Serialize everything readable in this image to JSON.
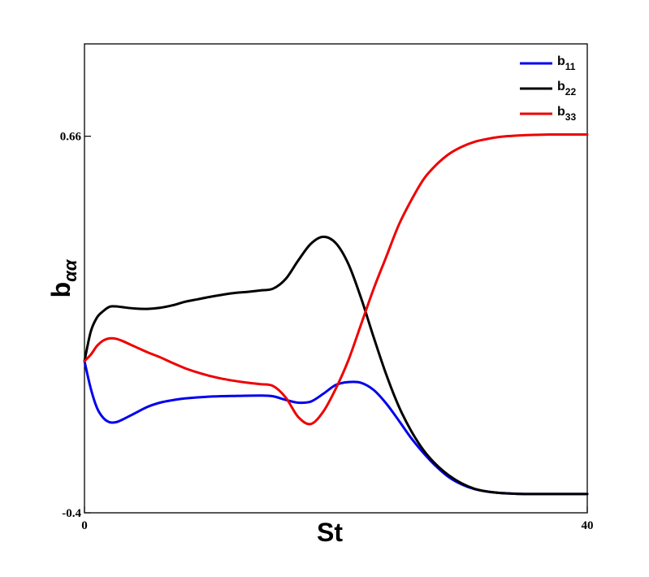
{
  "chart_data": {
    "type": "line",
    "title": "",
    "xlabel": "St",
    "ylabel_main": "b",
    "ylabel_sub": "αα",
    "xlim": [
      0,
      40
    ],
    "ylim": [
      -0.4,
      0.92
    ],
    "x_ticks": [
      {
        "value": 0,
        "label": "0"
      },
      {
        "value": 40,
        "label": "40"
      }
    ],
    "y_ticks": [
      {
        "value": 0.66,
        "label": "0.66"
      },
      {
        "value": -0.4,
        "label": "-0.4"
      }
    ],
    "grid": false,
    "legend_position": "top-right",
    "series": [
      {
        "name": "b",
        "name_sub": "11",
        "color": "#0000ee",
        "x": [
          0,
          0.5,
          1,
          1.5,
          2,
          2.5,
          3,
          4,
          5,
          6,
          7,
          8,
          10,
          12,
          14,
          15,
          16,
          17,
          18,
          19,
          20,
          21,
          22,
          23,
          24,
          25,
          26,
          27,
          28,
          29,
          30,
          31,
          32,
          33,
          34,
          35,
          36,
          38,
          40
        ],
        "y": [
          0.027,
          -0.05,
          -0.105,
          -0.133,
          -0.145,
          -0.145,
          -0.138,
          -0.12,
          -0.102,
          -0.09,
          -0.083,
          -0.078,
          -0.073,
          -0.071,
          -0.07,
          -0.072,
          -0.082,
          -0.09,
          -0.087,
          -0.065,
          -0.04,
          -0.032,
          -0.034,
          -0.054,
          -0.092,
          -0.14,
          -0.19,
          -0.233,
          -0.27,
          -0.3,
          -0.32,
          -0.333,
          -0.34,
          -0.344,
          -0.346,
          -0.347,
          -0.347,
          -0.347,
          -0.347
        ]
      },
      {
        "name": "b",
        "name_sub": "22",
        "color": "#000000",
        "x": [
          0,
          0.5,
          1,
          1.5,
          2,
          2.5,
          3,
          4,
          5,
          6,
          7,
          8,
          9,
          10,
          11,
          12,
          13,
          14,
          15,
          16,
          17,
          18,
          19,
          20,
          21,
          22,
          23,
          24,
          25,
          26,
          27,
          28,
          29,
          30,
          31,
          32,
          33,
          34,
          35,
          36,
          38,
          40
        ],
        "y": [
          0.027,
          0.11,
          0.15,
          0.168,
          0.18,
          0.181,
          0.179,
          0.175,
          0.174,
          0.177,
          0.184,
          0.194,
          0.201,
          0.208,
          0.214,
          0.219,
          0.222,
          0.226,
          0.231,
          0.258,
          0.31,
          0.357,
          0.377,
          0.359,
          0.3,
          0.205,
          0.095,
          -0.01,
          -0.1,
          -0.17,
          -0.225,
          -0.265,
          -0.295,
          -0.317,
          -0.332,
          -0.34,
          -0.344,
          -0.346,
          -0.347,
          -0.347,
          -0.347,
          -0.347
        ]
      },
      {
        "name": "b",
        "name_sub": "33",
        "color": "#ee0000",
        "x": [
          0,
          0.5,
          1,
          1.5,
          2,
          2.5,
          3,
          4,
          5,
          6,
          7,
          8,
          9,
          10,
          11,
          12,
          13,
          14,
          15,
          16,
          17,
          18,
          19,
          20,
          21,
          22,
          23,
          24,
          25,
          26,
          27,
          28,
          29,
          30,
          31,
          32,
          33,
          34,
          35,
          36,
          37,
          38,
          40
        ],
        "y": [
          0.027,
          0.045,
          0.07,
          0.085,
          0.091,
          0.09,
          0.084,
          0.068,
          0.052,
          0.038,
          0.022,
          0.007,
          -0.005,
          -0.015,
          -0.023,
          -0.029,
          -0.034,
          -0.038,
          -0.043,
          -0.075,
          -0.13,
          -0.15,
          -0.115,
          -0.05,
          0.03,
          0.13,
          0.23,
          0.32,
          0.41,
          0.48,
          0.54,
          0.58,
          0.61,
          0.63,
          0.644,
          0.652,
          0.658,
          0.661,
          0.663,
          0.664,
          0.665,
          0.665,
          0.665
        ]
      }
    ]
  }
}
